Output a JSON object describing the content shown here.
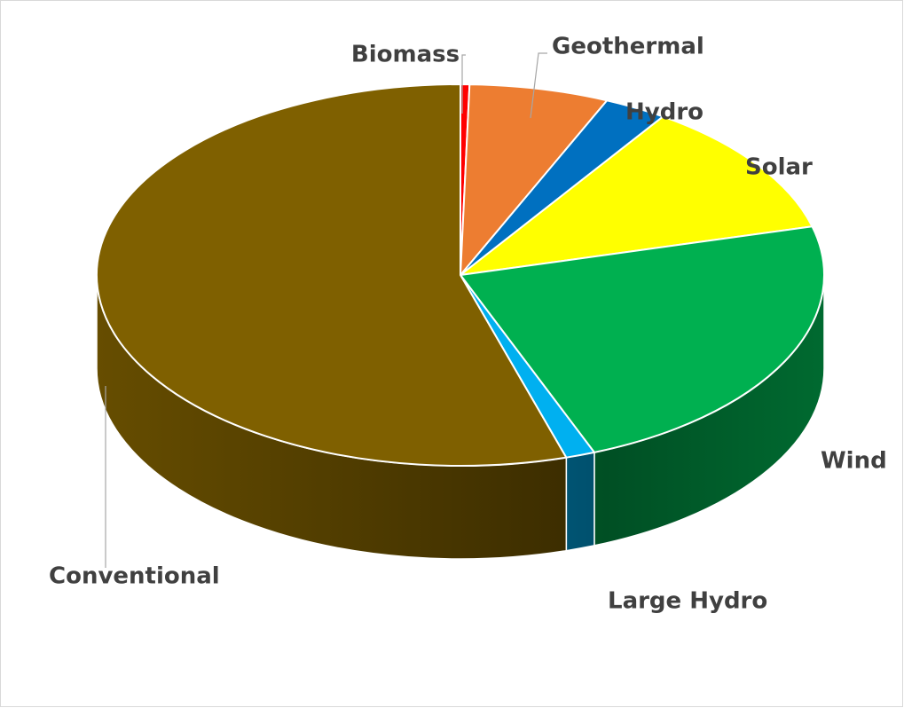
{
  "chart_data": {
    "type": "pie3d",
    "categories": [
      "Biomass",
      "Geothermal",
      "Hydro",
      "Solar",
      "Wind",
      "Large Hydro",
      "Conventional"
    ],
    "values": [
      0.4,
      6.2,
      2.8,
      11.5,
      23.1,
      1.3,
      54.7
    ],
    "colors": [
      "#ff0000",
      "#ed7d31",
      "#0070c0",
      "#ffff00",
      "#00b050",
      "#00b0f0",
      "#7f6000"
    ]
  }
}
